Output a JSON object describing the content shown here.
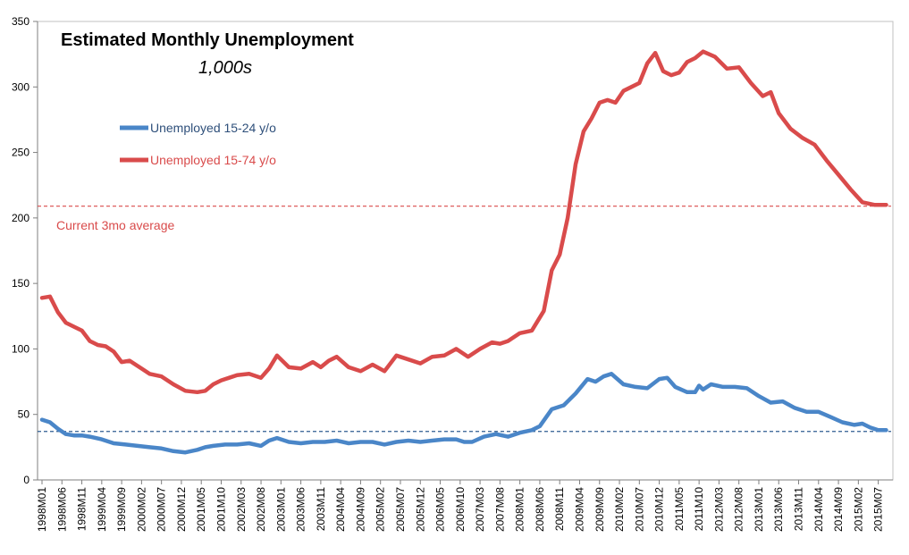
{
  "chart_data": {
    "type": "line",
    "title": "Estimated Monthly Unemployment",
    "subtitle": "1,000s",
    "ylim": [
      0,
      350
    ],
    "yticks": [
      0,
      50,
      100,
      150,
      200,
      250,
      300,
      350
    ],
    "xtick_labels": [
      "1998M01",
      "1998M06",
      "1998M11",
      "1999M04",
      "1999M09",
      "2000M02",
      "2000M07",
      "2000M12",
      "2001M05",
      "2001M10",
      "2002M03",
      "2002M08",
      "2003M01",
      "2003M06",
      "2003M11",
      "2004M04",
      "2004M09",
      "2005M02",
      "2005M07",
      "2005M12",
      "2006M05",
      "2006M10",
      "2007M03",
      "2007M08",
      "2008M01",
      "2008M06",
      "2008M11",
      "2009M04",
      "2009M09",
      "2010M02",
      "2010M07",
      "2010M12",
      "2011M05",
      "2011M10",
      "2012M03",
      "2012M08",
      "2013M01",
      "2013M06",
      "2013M11",
      "2014M04",
      "2014M09",
      "2015M02",
      "2015M07"
    ],
    "grid": false,
    "legend_position": "top-left",
    "series": [
      {
        "name": "Unemployed 15-24 y/o",
        "color": "#4a86c8",
        "points": [
          [
            "1998M01",
            46
          ],
          [
            "1998M03",
            44
          ],
          [
            "1998M05",
            39
          ],
          [
            "1998M07",
            35
          ],
          [
            "1998M09",
            34
          ],
          [
            "1998M11",
            34
          ],
          [
            "1999M01",
            33
          ],
          [
            "1999M04",
            31
          ],
          [
            "1999M07",
            28
          ],
          [
            "1999M10",
            27
          ],
          [
            "2000M01",
            26
          ],
          [
            "2000M04",
            25
          ],
          [
            "2000M07",
            24
          ],
          [
            "2000M10",
            22
          ],
          [
            "2001M01",
            21
          ],
          [
            "2001M04",
            23
          ],
          [
            "2001M06",
            25
          ],
          [
            "2001M08",
            26
          ],
          [
            "2001M11",
            27
          ],
          [
            "2002M02",
            27
          ],
          [
            "2002M05",
            28
          ],
          [
            "2002M08",
            26
          ],
          [
            "2002M10",
            30
          ],
          [
            "2002M12",
            32
          ],
          [
            "2003M03",
            29
          ],
          [
            "2003M06",
            28
          ],
          [
            "2003M09",
            29
          ],
          [
            "2003M12",
            29
          ],
          [
            "2004M03",
            30
          ],
          [
            "2004M06",
            28
          ],
          [
            "2004M09",
            29
          ],
          [
            "2004M12",
            29
          ],
          [
            "2005M03",
            27
          ],
          [
            "2005M06",
            29
          ],
          [
            "2005M09",
            30
          ],
          [
            "2005M12",
            29
          ],
          [
            "2006M03",
            30
          ],
          [
            "2006M06",
            31
          ],
          [
            "2006M09",
            31
          ],
          [
            "2006M11",
            29
          ],
          [
            "2007M01",
            29
          ],
          [
            "2007M04",
            33
          ],
          [
            "2007M07",
            35
          ],
          [
            "2007M10",
            33
          ],
          [
            "2008M01",
            36
          ],
          [
            "2008M04",
            38
          ],
          [
            "2008M06",
            41
          ],
          [
            "2008M09",
            54
          ],
          [
            "2008M12",
            57
          ],
          [
            "2009M03",
            66
          ],
          [
            "2009M06",
            77
          ],
          [
            "2009M08",
            75
          ],
          [
            "2009M10",
            79
          ],
          [
            "2009M12",
            81
          ],
          [
            "2010M03",
            73
          ],
          [
            "2010M06",
            71
          ],
          [
            "2010M09",
            70
          ],
          [
            "2010M12",
            77
          ],
          [
            "2011M02",
            78
          ],
          [
            "2011M04",
            71
          ],
          [
            "2011M07",
            67
          ],
          [
            "2011M09",
            67
          ],
          [
            "2011M10",
            72
          ],
          [
            "2011M11",
            69
          ],
          [
            "2012M01",
            73
          ],
          [
            "2012M04",
            71
          ],
          [
            "2012M07",
            71
          ],
          [
            "2012M10",
            70
          ],
          [
            "2013M01",
            64
          ],
          [
            "2013M04",
            59
          ],
          [
            "2013M07",
            60
          ],
          [
            "2013M10",
            55
          ],
          [
            "2014M01",
            52
          ],
          [
            "2014M04",
            52
          ],
          [
            "2014M07",
            48
          ],
          [
            "2014M10",
            44
          ],
          [
            "2015M01",
            42
          ],
          [
            "2015M03",
            43
          ],
          [
            "2015M05",
            40
          ],
          [
            "2015M07",
            38
          ],
          [
            "2015M09",
            38
          ]
        ]
      },
      {
        "name": "Unemployed 15-74 y/o",
        "color": "#d94b4b",
        "points": [
          [
            "1998M01",
            139
          ],
          [
            "1998M03",
            140
          ],
          [
            "1998M05",
            128
          ],
          [
            "1998M07",
            120
          ],
          [
            "1998M09",
            117
          ],
          [
            "1998M11",
            114
          ],
          [
            "1999M01",
            106
          ],
          [
            "1999M03",
            103
          ],
          [
            "1999M05",
            102
          ],
          [
            "1999M07",
            98
          ],
          [
            "1999M09",
            90
          ],
          [
            "1999M11",
            91
          ],
          [
            "2000M02",
            85
          ],
          [
            "2000M04",
            81
          ],
          [
            "2000M07",
            79
          ],
          [
            "2000M10",
            73
          ],
          [
            "2001M01",
            68
          ],
          [
            "2001M04",
            67
          ],
          [
            "2001M06",
            68
          ],
          [
            "2001M08",
            73
          ],
          [
            "2001M10",
            76
          ],
          [
            "2001M12",
            78
          ],
          [
            "2002M02",
            80
          ],
          [
            "2002M05",
            81
          ],
          [
            "2002M08",
            78
          ],
          [
            "2002M10",
            85
          ],
          [
            "2002M12",
            95
          ],
          [
            "2003M03",
            86
          ],
          [
            "2003M06",
            85
          ],
          [
            "2003M09",
            90
          ],
          [
            "2003M11",
            86
          ],
          [
            "2004M01",
            91
          ],
          [
            "2004M03",
            94
          ],
          [
            "2004M06",
            86
          ],
          [
            "2004M09",
            83
          ],
          [
            "2004M12",
            88
          ],
          [
            "2005M03",
            83
          ],
          [
            "2005M06",
            95
          ],
          [
            "2005M09",
            92
          ],
          [
            "2005M12",
            89
          ],
          [
            "2006M03",
            94
          ],
          [
            "2006M06",
            95
          ],
          [
            "2006M09",
            100
          ],
          [
            "2006M12",
            94
          ],
          [
            "2007M03",
            100
          ],
          [
            "2007M06",
            105
          ],
          [
            "2007M08",
            104
          ],
          [
            "2007M10",
            106
          ],
          [
            "2008M01",
            112
          ],
          [
            "2008M04",
            114
          ],
          [
            "2008M07",
            129
          ],
          [
            "2008M09",
            160
          ],
          [
            "2008M11",
            172
          ],
          [
            "2009M01",
            200
          ],
          [
            "2009M03",
            241
          ],
          [
            "2009M05",
            266
          ],
          [
            "2009M07",
            276
          ],
          [
            "2009M09",
            288
          ],
          [
            "2009M11",
            290
          ],
          [
            "2010M01",
            288
          ],
          [
            "2010M03",
            297
          ],
          [
            "2010M05",
            300
          ],
          [
            "2010M07",
            303
          ],
          [
            "2010M09",
            318
          ],
          [
            "2010M11",
            326
          ],
          [
            "2011M01",
            312
          ],
          [
            "2011M03",
            309
          ],
          [
            "2011M05",
            311
          ],
          [
            "2011M07",
            319
          ],
          [
            "2011M09",
            322
          ],
          [
            "2011M11",
            327
          ],
          [
            "2012M02",
            323
          ],
          [
            "2012M05",
            314
          ],
          [
            "2012M08",
            315
          ],
          [
            "2012M11",
            303
          ],
          [
            "2013M02",
            293
          ],
          [
            "2013M04",
            296
          ],
          [
            "2013M06",
            280
          ],
          [
            "2013M09",
            268
          ],
          [
            "2013M12",
            261
          ],
          [
            "2014M03",
            256
          ],
          [
            "2014M06",
            244
          ],
          [
            "2014M09",
            233
          ],
          [
            "2014M12",
            222
          ],
          [
            "2015M03",
            212
          ],
          [
            "2015M06",
            210
          ],
          [
            "2015M09",
            210
          ]
        ]
      }
    ],
    "reference_lines": [
      {
        "value": 209,
        "color": "#d94b4b",
        "style": "dashed"
      },
      {
        "value": 37,
        "color": "#2e5c91",
        "style": "dashed"
      }
    ],
    "annotations": [
      {
        "text": "Current 3mo average",
        "color": "#d94b4b"
      }
    ]
  }
}
